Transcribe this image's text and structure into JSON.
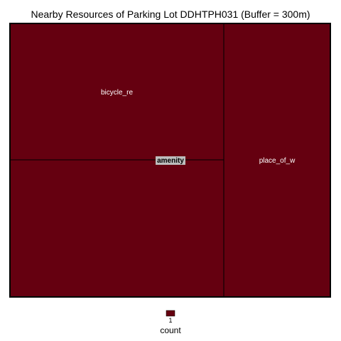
{
  "chart_data": {
    "type": "treemap",
    "title": "Nearby Resources of Parking Lot DDHTPH031 (Buffer = 300m)",
    "group": "amenity",
    "tiles": [
      {
        "label": "bicycle_re",
        "count": 1
      },
      {
        "label": "",
        "count": 1
      },
      {
        "label": "place_of_w",
        "count": 1
      }
    ],
    "legend": {
      "title": "count",
      "values": [
        1
      ],
      "position": "bottom"
    },
    "colors": {
      "fill": "#650010",
      "border": "#000000",
      "group_label_bg": "#bdbdbd"
    }
  }
}
